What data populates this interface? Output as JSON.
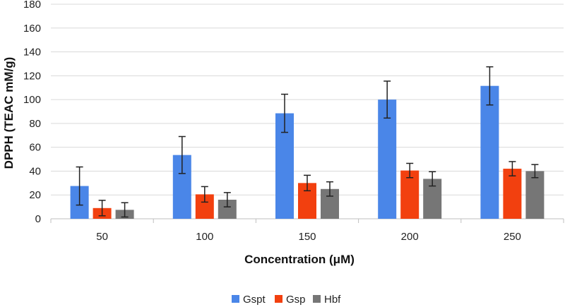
{
  "chart_data": {
    "type": "bar",
    "title": "",
    "xlabel": "Concentration (μM)",
    "ylabel": "DPPH (TEAC mM/g)",
    "ylim": [
      0,
      180
    ],
    "y_ticks": [
      0,
      20,
      40,
      60,
      80,
      100,
      120,
      140,
      160,
      180
    ],
    "grid": true,
    "legend_position": "bottom-center",
    "categories": [
      "50",
      "100",
      "150",
      "200",
      "250"
    ],
    "series": [
      {
        "name": "Gspt",
        "color": "#4a86e8",
        "values": [
          27.5,
          53.5,
          88.5,
          100,
          111.5
        ],
        "errors": [
          16,
          15.5,
          16,
          15.5,
          16
        ]
      },
      {
        "name": "Gsp",
        "color": "#f2400f",
        "values": [
          9,
          20.5,
          30,
          40.5,
          42
        ],
        "errors": [
          6.5,
          6.5,
          6.5,
          6,
          6
        ]
      },
      {
        "name": "Hbf",
        "color": "#767676",
        "values": [
          7.5,
          16,
          25,
          33.5,
          40
        ],
        "errors": [
          6,
          6,
          6,
          6,
          5.5
        ]
      }
    ]
  }
}
